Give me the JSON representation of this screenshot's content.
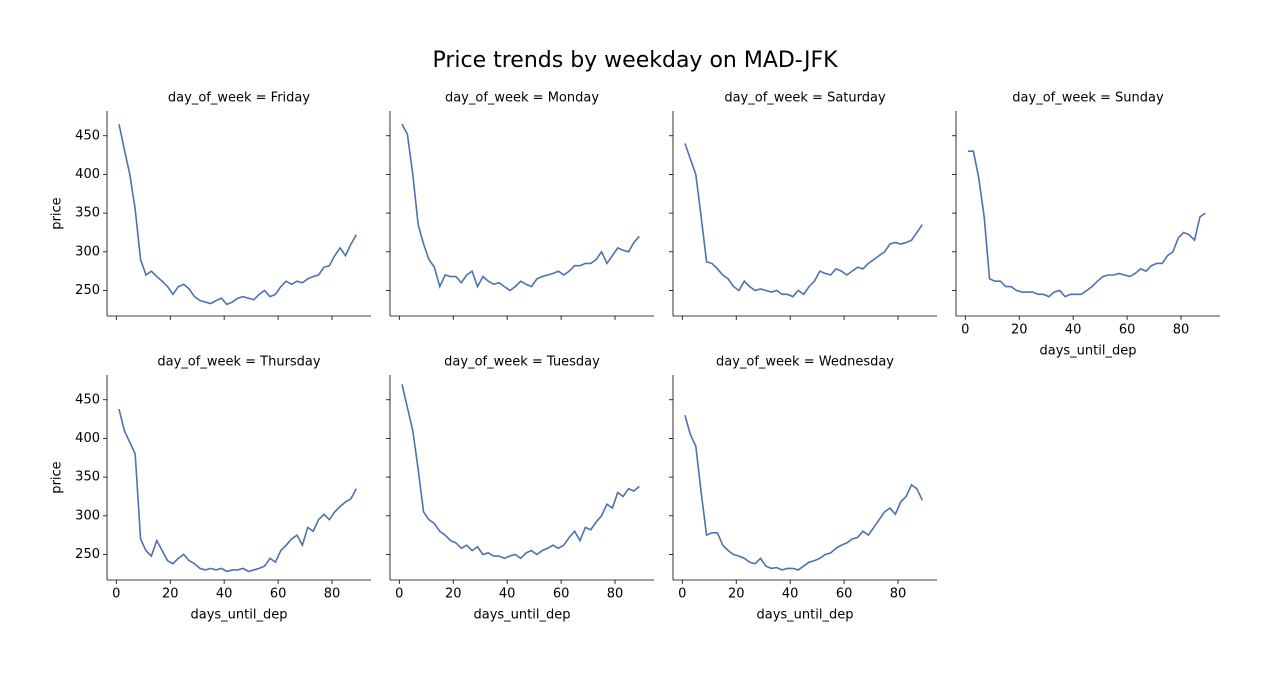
{
  "title": "Price trends by weekday on MAD-JFK",
  "chart_data": [
    {
      "type": "line",
      "title": "day_of_week = Friday",
      "color": "#4c72b0",
      "x": [
        1,
        3,
        5,
        7,
        9,
        11,
        13,
        15,
        17,
        19,
        21,
        23,
        25,
        27,
        29,
        31,
        33,
        35,
        37,
        39,
        41,
        43,
        45,
        47,
        49,
        51,
        53,
        55,
        57,
        59,
        61,
        63,
        65,
        67,
        69,
        71,
        73,
        75,
        77,
        79,
        81,
        83,
        85,
        87,
        89
      ],
      "values": [
        465,
        432,
        400,
        355,
        290,
        270,
        275,
        268,
        262,
        255,
        245,
        255,
        258,
        252,
        242,
        237,
        235,
        233,
        237,
        240,
        232,
        235,
        240,
        242,
        240,
        238,
        245,
        250,
        242,
        245,
        255,
        262,
        258,
        262,
        260,
        265,
        268,
        270,
        280,
        282,
        295,
        305,
        295,
        310,
        322
      ],
      "xlim": [
        -3.45,
        94.45
      ],
      "ylim": [
        217,
        482
      ],
      "xticks": [
        0,
        20,
        40,
        60,
        80
      ],
      "yticks": [
        250,
        300,
        350,
        400,
        450
      ],
      "xticklabels": false,
      "yticklabels": true,
      "ylabel": "price"
    },
    {
      "type": "line",
      "title": "day_of_week = Monday",
      "color": "#4c72b0",
      "x": [
        1,
        3,
        5,
        7,
        9,
        11,
        13,
        15,
        17,
        19,
        21,
        23,
        25,
        27,
        29,
        31,
        33,
        35,
        37,
        39,
        41,
        43,
        45,
        47,
        49,
        51,
        53,
        55,
        57,
        59,
        61,
        63,
        65,
        67,
        69,
        71,
        73,
        75,
        77,
        79,
        81,
        83,
        85,
        87,
        89
      ],
      "values": [
        465,
        452,
        400,
        335,
        310,
        290,
        280,
        255,
        270,
        268,
        268,
        260,
        270,
        275,
        255,
        268,
        262,
        258,
        260,
        255,
        250,
        255,
        262,
        258,
        255,
        265,
        268,
        270,
        272,
        275,
        270,
        275,
        282,
        282,
        285,
        285,
        290,
        300,
        285,
        295,
        305,
        302,
        300,
        312,
        320
      ],
      "xlim": [
        -3.45,
        94.45
      ],
      "ylim": [
        217,
        482
      ],
      "xticks": [
        0,
        20,
        40,
        60,
        80
      ],
      "yticks": [
        250,
        300,
        350,
        400,
        450
      ],
      "xticklabels": false,
      "yticklabels": false
    },
    {
      "type": "line",
      "title": "day_of_week = Saturday",
      "color": "#4c72b0",
      "x": [
        1,
        3,
        5,
        7,
        9,
        11,
        13,
        15,
        17,
        19,
        21,
        23,
        25,
        27,
        29,
        31,
        33,
        35,
        37,
        39,
        41,
        43,
        45,
        47,
        49,
        51,
        53,
        55,
        57,
        59,
        61,
        63,
        65,
        67,
        69,
        71,
        73,
        75,
        77,
        79,
        81,
        83,
        85,
        87,
        89
      ],
      "values": [
        440,
        420,
        400,
        345,
        287,
        285,
        278,
        270,
        265,
        255,
        250,
        262,
        255,
        250,
        252,
        250,
        248,
        250,
        245,
        245,
        242,
        250,
        245,
        255,
        262,
        275,
        272,
        270,
        278,
        275,
        270,
        275,
        280,
        278,
        285,
        290,
        295,
        300,
        310,
        312,
        310,
        312,
        315,
        325,
        335
      ],
      "xlim": [
        -3.45,
        94.45
      ],
      "ylim": [
        217,
        482
      ],
      "xticks": [
        0,
        20,
        40,
        60,
        80
      ],
      "yticks": [
        250,
        300,
        350,
        400,
        450
      ],
      "xticklabels": false,
      "yticklabels": false
    },
    {
      "type": "line",
      "title": "day_of_week = Sunday",
      "color": "#4c72b0",
      "x": [
        1,
        3,
        5,
        7,
        9,
        11,
        13,
        15,
        17,
        19,
        21,
        23,
        25,
        27,
        29,
        31,
        33,
        35,
        37,
        39,
        41,
        43,
        45,
        47,
        49,
        51,
        53,
        55,
        57,
        59,
        61,
        63,
        65,
        67,
        69,
        71,
        73,
        75,
        77,
        79,
        81,
        83,
        85,
        87,
        89
      ],
      "values": [
        430,
        430,
        395,
        345,
        265,
        262,
        262,
        255,
        255,
        250,
        248,
        248,
        248,
        245,
        245,
        242,
        248,
        250,
        242,
        245,
        245,
        245,
        250,
        255,
        262,
        268,
        270,
        270,
        272,
        270,
        268,
        272,
        278,
        275,
        282,
        285,
        285,
        295,
        300,
        318,
        325,
        322,
        315,
        345,
        350
      ],
      "xlim": [
        -3.45,
        94.45
      ],
      "ylim": [
        217,
        482
      ],
      "xticks": [
        0,
        20,
        40,
        60,
        80
      ],
      "yticks": [
        250,
        300,
        350,
        400,
        450
      ],
      "xticklabels": true,
      "yticklabels": false,
      "xlabel": "days_until_dep"
    },
    {
      "type": "line",
      "title": "day_of_week = Thursday",
      "color": "#4c72b0",
      "x": [
        1,
        3,
        5,
        7,
        9,
        11,
        13,
        15,
        17,
        19,
        21,
        23,
        25,
        27,
        29,
        31,
        33,
        35,
        37,
        39,
        41,
        43,
        45,
        47,
        49,
        51,
        53,
        55,
        57,
        59,
        61,
        63,
        65,
        67,
        69,
        71,
        73,
        75,
        77,
        79,
        81,
        83,
        85,
        87,
        89
      ],
      "values": [
        438,
        410,
        395,
        380,
        270,
        255,
        248,
        268,
        255,
        242,
        238,
        245,
        250,
        242,
        238,
        232,
        230,
        232,
        230,
        232,
        228,
        230,
        230,
        232,
        228,
        230,
        232,
        235,
        245,
        240,
        255,
        262,
        270,
        275,
        262,
        285,
        280,
        295,
        302,
        295,
        305,
        312,
        318,
        322,
        335
      ],
      "xlim": [
        -3.45,
        94.45
      ],
      "ylim": [
        217,
        482
      ],
      "xticks": [
        0,
        20,
        40,
        60,
        80
      ],
      "yticks": [
        250,
        300,
        350,
        400,
        450
      ],
      "xticklabels": true,
      "yticklabels": true,
      "xlabel": "days_until_dep",
      "ylabel": "price"
    },
    {
      "type": "line",
      "title": "day_of_week = Tuesday",
      "color": "#4c72b0",
      "x": [
        1,
        3,
        5,
        7,
        9,
        11,
        13,
        15,
        17,
        19,
        21,
        23,
        25,
        27,
        29,
        31,
        33,
        35,
        37,
        39,
        41,
        43,
        45,
        47,
        49,
        51,
        53,
        55,
        57,
        59,
        61,
        63,
        65,
        67,
        69,
        71,
        73,
        75,
        77,
        79,
        81,
        83,
        85,
        87,
        89
      ],
      "values": [
        470,
        440,
        410,
        360,
        305,
        295,
        290,
        280,
        275,
        268,
        265,
        258,
        262,
        255,
        260,
        250,
        252,
        248,
        248,
        245,
        248,
        250,
        245,
        252,
        255,
        250,
        255,
        258,
        262,
        258,
        262,
        272,
        280,
        268,
        285,
        282,
        292,
        300,
        315,
        310,
        330,
        325,
        335,
        332,
        338
      ],
      "xlim": [
        -3.45,
        94.45
      ],
      "ylim": [
        217,
        482
      ],
      "xticks": [
        0,
        20,
        40,
        60,
        80
      ],
      "yticks": [
        250,
        300,
        350,
        400,
        450
      ],
      "xticklabels": true,
      "yticklabels": false,
      "xlabel": "days_until_dep"
    },
    {
      "type": "line",
      "title": "day_of_week = Wednesday",
      "color": "#4c72b0",
      "x": [
        1,
        3,
        5,
        7,
        9,
        11,
        13,
        15,
        17,
        19,
        21,
        23,
        25,
        27,
        29,
        31,
        33,
        35,
        37,
        39,
        41,
        43,
        45,
        47,
        49,
        51,
        53,
        55,
        57,
        59,
        61,
        63,
        65,
        67,
        69,
        71,
        73,
        75,
        77,
        79,
        81,
        83,
        85,
        87,
        89
      ],
      "values": [
        430,
        405,
        390,
        330,
        275,
        278,
        278,
        262,
        255,
        250,
        248,
        245,
        240,
        238,
        245,
        235,
        232,
        233,
        230,
        232,
        232,
        230,
        235,
        240,
        242,
        245,
        250,
        252,
        258,
        262,
        265,
        270,
        272,
        280,
        275,
        285,
        295,
        305,
        310,
        302,
        318,
        325,
        340,
        335,
        320
      ],
      "xlim": [
        -3.45,
        94.45
      ],
      "ylim": [
        217,
        482
      ],
      "xticks": [
        0,
        20,
        40,
        60,
        80
      ],
      "yticks": [
        250,
        300,
        350,
        400,
        450
      ],
      "xticklabels": true,
      "yticklabels": false,
      "xlabel": "days_until_dep"
    }
  ]
}
